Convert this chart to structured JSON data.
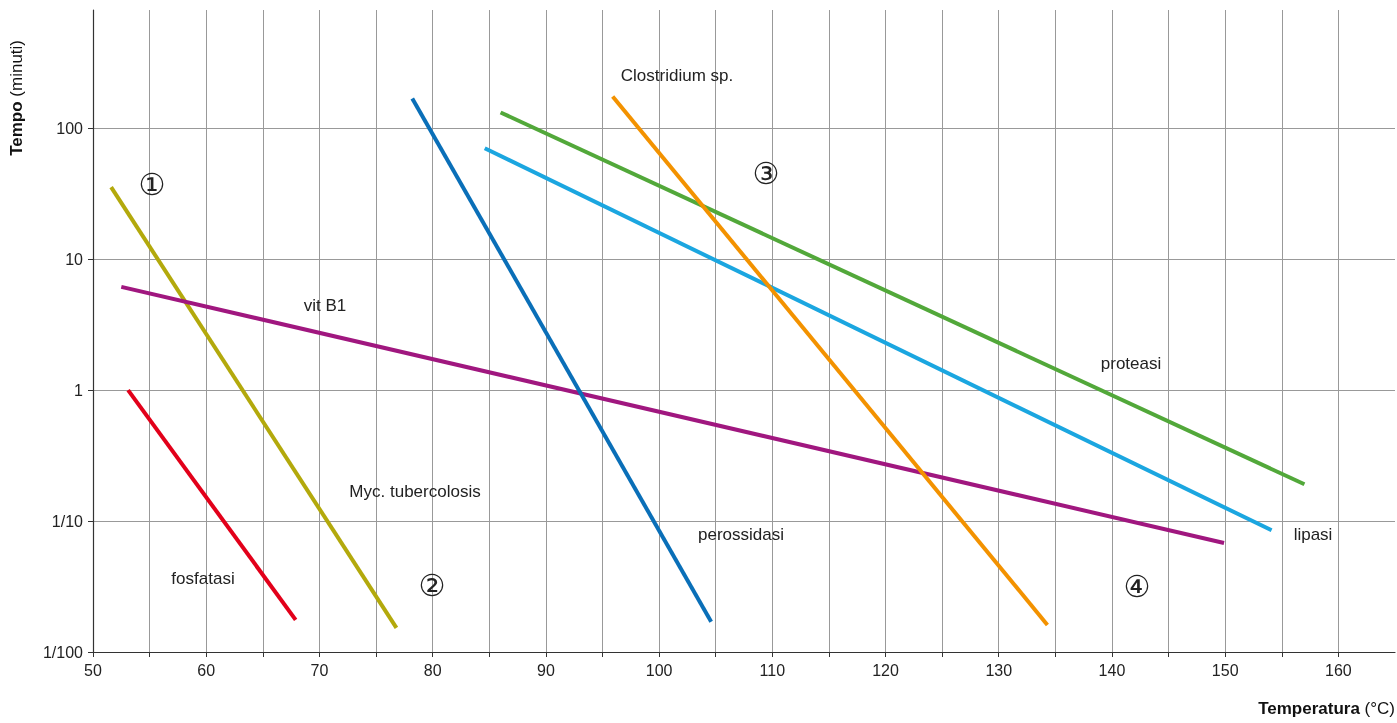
{
  "chart_data": {
    "type": "line",
    "xlabel": "Temperatura (°C)",
    "ylabel": "Tempo (minuti)",
    "log": "y",
    "grid": true,
    "marker": "none",
    "line_style": "solid",
    "xlim": [
      50,
      165
    ],
    "xticks": [
      50,
      {
        "value": 55,
        "label": null
      },
      60,
      {
        "value": 65,
        "label": null
      },
      70,
      {
        "value": 75,
        "label": null
      },
      80,
      {
        "value": 85,
        "label": null
      },
      90,
      {
        "value": 95,
        "label": null
      },
      100,
      {
        "value": 105,
        "label": null
      },
      110,
      {
        "value": 115,
        "label": null
      },
      120,
      {
        "value": 125,
        "label": null
      },
      130,
      {
        "value": 135,
        "label": null
      },
      140,
      {
        "value": 145,
        "label": null
      },
      150,
      {
        "value": 155,
        "label": null
      },
      160
    ],
    "ylim": [
      0.01,
      800
    ],
    "yticks": [
      {
        "value": 0.01,
        "label": "1/100"
      },
      {
        "value": 0.1,
        "label": "1/10"
      },
      1,
      10,
      100
    ],
    "series": [
      {
        "name": "fosfatasi",
        "color": "#e2001a",
        "x": [
          53.1,
          67.9
        ],
        "values": [
          1,
          0.0176
        ]
      },
      {
        "name": "Myc. tubercolosis",
        "color": "#b3a90c",
        "x": [
          51.6,
          76.8
        ],
        "values": [
          35.5,
          0.0153
        ]
      },
      {
        "name": "vit B1",
        "color": "#a0177f",
        "x": [
          52.5,
          149.9
        ],
        "values": [
          6.15,
          0.068
        ]
      },
      {
        "name": "perossidasi",
        "color": "#0a6fb8",
        "x": [
          78.2,
          104.6
        ],
        "values": [
          169,
          0.017
        ]
      },
      {
        "name": "lipasi",
        "color": "#1ba6e0",
        "x": [
          84.6,
          154.1
        ],
        "values": [
          70.4,
          0.085
        ]
      },
      {
        "name": "proteasi",
        "color": "#52a83a",
        "x": [
          86,
          157
        ],
        "values": [
          132,
          0.191
        ]
      },
      {
        "name": "Clostridium sp.",
        "color": "#f39200",
        "x": [
          95.9,
          134.3
        ],
        "values": [
          175,
          0.0161
        ]
      }
    ],
    "annotations": [
      "①",
      "②",
      "③",
      "④"
    ]
  }
}
